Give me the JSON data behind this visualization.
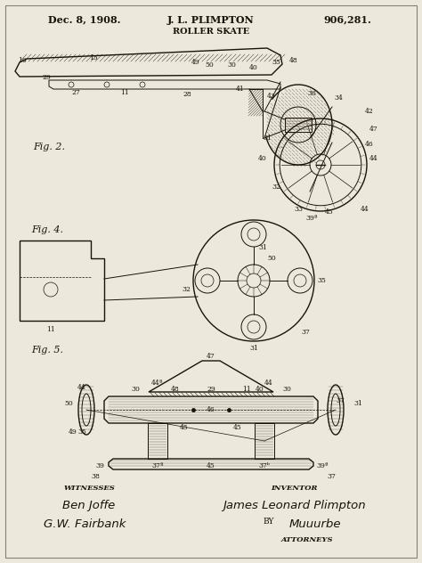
{
  "bg_color": "#ede8dc",
  "title_date": "Dec. 8, 1908.",
  "title_name": "J. L. PLIMPTON",
  "title_patent": "906,281.",
  "title_subject": "ROLLER SKATE",
  "witnesses_label": "WITNESSES",
  "witness1_sig": "Ben Joffe",
  "witness2_sig": "G.W. Fairbank",
  "inventor_label": "INVENTOR",
  "inventor_name": "James Leonard Plimpton",
  "by_label": "BY",
  "by_sig": "Muuurbe",
  "attorneys_label": "ATTORNEYS",
  "fig2_label": "Fig. 2.",
  "fig4_label": "Fig. 4.",
  "fig5_label": "Fig. 5.",
  "ink_color": "#1a1408",
  "light_ink": "#3a3020",
  "border_color": "#888070",
  "fig_width": 4.74,
  "fig_height": 6.32,
  "dpi": 100
}
